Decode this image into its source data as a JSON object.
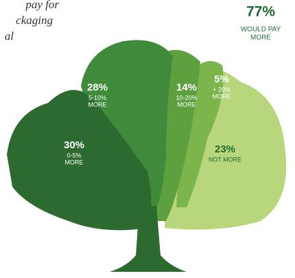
{
  "intro": [
    "pay for",
    "ckaging",
    "al"
  ],
  "chart_data": {
    "type": "tree",
    "total": {
      "value": 77,
      "value_label": "77%",
      "label_lines": [
        "WOULD PAY",
        "MORE"
      ],
      "color": "#1f6b2e"
    },
    "categories": [
      [
        "0-5%",
        "MORE"
      ],
      [
        "5-10%",
        "MORE"
      ],
      [
        "10-20%",
        "MORE"
      ],
      [
        "+ 20%",
        "MORE"
      ],
      [
        "NOT MORE"
      ]
    ],
    "values": [
      30,
      28,
      14,
      5,
      23
    ],
    "value_labels": [
      "30%",
      "28%",
      "14%",
      "5%",
      "23%"
    ],
    "colors": [
      "#2d6a2f",
      "#3f8a3b",
      "#5e9f3f",
      "#7cb54c",
      "#b8d77c"
    ]
  }
}
